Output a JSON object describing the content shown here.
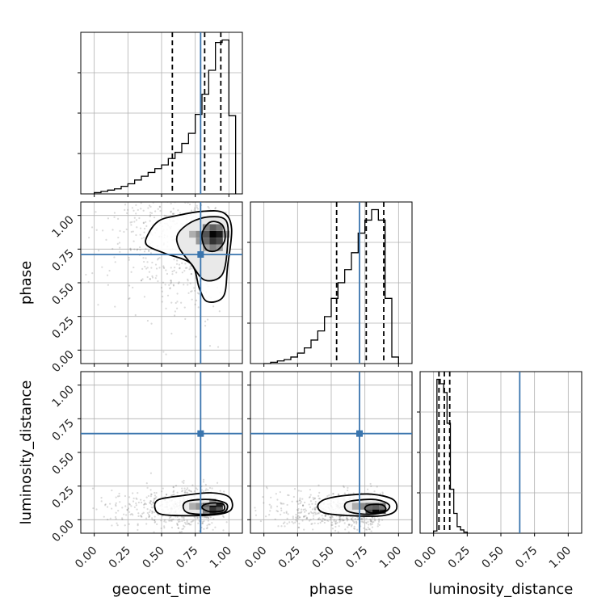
{
  "chart_data": {
    "type": "corner",
    "parameters": [
      "geocent_time",
      "phase",
      "luminosity_distance"
    ],
    "ticks": [
      0.0,
      0.25,
      0.5,
      0.75,
      1.0
    ],
    "tick_labels": [
      "0.00",
      "0.25",
      "0.50",
      "0.75",
      "1.00"
    ],
    "grid": true,
    "truth_color": "#3a75ae",
    "truths": {
      "geocent_time": 0.79,
      "phase": 0.71,
      "luminosity_distance": 0.64
    },
    "quantiles": {
      "geocent_time": [
        0.58,
        0.82,
        0.94
      ],
      "phase": [
        0.54,
        0.76,
        0.89
      ],
      "luminosity_distance": [
        0.04,
        0.08,
        0.12
      ]
    },
    "histograms": {
      "geocent_time": {
        "xlim": [
          -0.1,
          1.1
        ],
        "edges": [
          0.0,
          0.05,
          0.1,
          0.15,
          0.2,
          0.25,
          0.3,
          0.35,
          0.4,
          0.45,
          0.5,
          0.55,
          0.6,
          0.65,
          0.7,
          0.75,
          0.8,
          0.85,
          0.9,
          0.95,
          1.0,
          1.05
        ],
        "counts": [
          1,
          2,
          3,
          4,
          6,
          8,
          11,
          14,
          17,
          20,
          23,
          28,
          33,
          40,
          48,
          63,
          79,
          98,
          120,
          122,
          62
        ]
      },
      "phase": {
        "xlim": [
          -0.1,
          1.1
        ],
        "edges": [
          0.0,
          0.05,
          0.1,
          0.15,
          0.2,
          0.25,
          0.3,
          0.35,
          0.4,
          0.45,
          0.5,
          0.55,
          0.6,
          0.65,
          0.7,
          0.75,
          0.8,
          0.85,
          0.9,
          0.95,
          1.0
        ],
        "counts": [
          0,
          1,
          2,
          3,
          5,
          8,
          12,
          18,
          25,
          36,
          50,
          62,
          72,
          85,
          100,
          110,
          118,
          110,
          50,
          5
        ]
      },
      "luminosity_distance": {
        "xlim": [
          -0.1,
          1.1
        ],
        "edges": [
          0.0,
          0.025,
          0.05,
          0.075,
          0.1,
          0.125,
          0.15,
          0.175,
          0.2,
          0.225,
          0.25
        ],
        "counts": [
          2,
          140,
          136,
          128,
          100,
          40,
          18,
          6,
          3,
          1
        ]
      }
    },
    "contours": {
      "geocent_time__phase": {
        "xlim": [
          -0.1,
          1.1
        ],
        "ylim": [
          -0.1,
          1.1
        ],
        "mode": [
          0.89,
          0.86
        ],
        "levels": [
          [
            [
              0.4,
              0.86
            ],
            [
              0.48,
              0.96
            ],
            [
              0.62,
              1.0
            ],
            [
              0.8,
              1.03
            ],
            [
              0.96,
              1.02
            ],
            [
              1.02,
              0.9
            ],
            [
              0.99,
              0.62
            ],
            [
              0.96,
              0.4
            ],
            [
              0.84,
              0.36
            ],
            [
              0.78,
              0.46
            ],
            [
              0.72,
              0.64
            ],
            [
              0.52,
              0.72
            ],
            [
              0.39,
              0.78
            ]
          ],
          [
            [
              0.62,
              0.86
            ],
            [
              0.72,
              0.95
            ],
            [
              0.86,
              0.99
            ],
            [
              0.98,
              0.96
            ],
            [
              0.99,
              0.78
            ],
            [
              0.95,
              0.56
            ],
            [
              0.82,
              0.52
            ],
            [
              0.72,
              0.64
            ],
            [
              0.63,
              0.76
            ]
          ],
          [
            [
              0.8,
              0.86
            ],
            [
              0.86,
              0.95
            ],
            [
              0.95,
              0.93
            ],
            [
              0.97,
              0.82
            ],
            [
              0.91,
              0.74
            ],
            [
              0.83,
              0.75
            ]
          ]
        ],
        "density": [
          {
            "x": 0.88,
            "y": 0.86,
            "w": 1.0
          },
          {
            "x": 0.93,
            "y": 0.86,
            "w": 0.9
          },
          {
            "x": 0.88,
            "y": 0.81,
            "w": 0.8
          },
          {
            "x": 0.83,
            "y": 0.86,
            "w": 0.65
          },
          {
            "x": 0.93,
            "y": 0.81,
            "w": 0.7
          },
          {
            "x": 0.88,
            "y": 0.91,
            "w": 0.6
          },
          {
            "x": 0.78,
            "y": 0.86,
            "w": 0.4
          },
          {
            "x": 0.78,
            "y": 0.81,
            "w": 0.35
          },
          {
            "x": 0.83,
            "y": 0.81,
            "w": 0.55
          },
          {
            "x": 0.93,
            "y": 0.91,
            "w": 0.5
          },
          {
            "x": 0.83,
            "y": 0.91,
            "w": 0.45
          },
          {
            "x": 0.73,
            "y": 0.86,
            "w": 0.25
          },
          {
            "x": 0.88,
            "y": 0.76,
            "w": 0.45
          },
          {
            "x": 0.93,
            "y": 0.76,
            "w": 0.35
          },
          {
            "x": 0.98,
            "y": 0.86,
            "w": 0.3
          },
          {
            "x": 0.83,
            "y": 0.76,
            "w": 0.3
          }
        ]
      },
      "geocent_time__luminosity_distance": {
        "xlim": [
          -0.1,
          1.1
        ],
        "ylim": [
          -0.1,
          1.1
        ],
        "mode": [
          0.89,
          0.09
        ],
        "levels": [
          [
            [
              0.45,
              0.09
            ],
            [
              0.48,
              0.15
            ],
            [
              0.66,
              0.18
            ],
            [
              0.86,
              0.2
            ],
            [
              1.0,
              0.17
            ],
            [
              1.02,
              0.08
            ],
            [
              0.92,
              0.04
            ],
            [
              0.7,
              0.03
            ],
            [
              0.5,
              0.04
            ]
          ],
          [
            [
              0.66,
              0.1
            ],
            [
              0.7,
              0.14
            ],
            [
              0.86,
              0.15
            ],
            [
              0.98,
              0.12
            ],
            [
              0.97,
              0.06
            ],
            [
              0.86,
              0.04
            ],
            [
              0.7,
              0.05
            ]
          ],
          [
            [
              0.8,
              0.09
            ],
            [
              0.84,
              0.12
            ],
            [
              0.95,
              0.12
            ],
            [
              0.96,
              0.07
            ],
            [
              0.86,
              0.06
            ]
          ]
        ],
        "density": [
          {
            "x": 0.88,
            "y": 0.1,
            "w": 1.0
          },
          {
            "x": 0.93,
            "y": 0.1,
            "w": 0.9
          },
          {
            "x": 0.88,
            "y": 0.07,
            "w": 0.8
          },
          {
            "x": 0.83,
            "y": 0.1,
            "w": 0.6
          },
          {
            "x": 0.93,
            "y": 0.07,
            "w": 0.65
          },
          {
            "x": 0.78,
            "y": 0.1,
            "w": 0.35
          },
          {
            "x": 0.73,
            "y": 0.1,
            "w": 0.25
          },
          {
            "x": 0.88,
            "y": 0.13,
            "w": 0.4
          },
          {
            "x": 0.83,
            "y": 0.07,
            "w": 0.45
          }
        ]
      },
      "phase__luminosity_distance": {
        "xlim": [
          -0.1,
          1.1
        ],
        "ylim": [
          -0.1,
          1.1
        ],
        "mode": [
          0.83,
          0.07
        ],
        "levels": [
          [
            [
              0.4,
              0.1
            ],
            [
              0.45,
              0.15
            ],
            [
              0.6,
              0.18
            ],
            [
              0.8,
              0.19
            ],
            [
              0.96,
              0.15
            ],
            [
              0.98,
              0.07
            ],
            [
              0.88,
              0.03
            ],
            [
              0.65,
              0.03
            ],
            [
              0.45,
              0.05
            ]
          ],
          [
            [
              0.6,
              0.11
            ],
            [
              0.65,
              0.14
            ],
            [
              0.83,
              0.15
            ],
            [
              0.93,
              0.11
            ],
            [
              0.9,
              0.06
            ],
            [
              0.78,
              0.04
            ],
            [
              0.63,
              0.06
            ]
          ],
          [
            [
              0.75,
              0.08
            ],
            [
              0.78,
              0.11
            ],
            [
              0.88,
              0.11
            ],
            [
              0.9,
              0.07
            ],
            [
              0.8,
              0.05
            ]
          ]
        ],
        "density": [
          {
            "x": 0.83,
            "y": 0.07,
            "w": 1.0
          },
          {
            "x": 0.88,
            "y": 0.07,
            "w": 0.85
          },
          {
            "x": 0.78,
            "y": 0.07,
            "w": 0.7
          },
          {
            "x": 0.83,
            "y": 0.1,
            "w": 0.6
          },
          {
            "x": 0.73,
            "y": 0.1,
            "w": 0.4
          },
          {
            "x": 0.68,
            "y": 0.1,
            "w": 0.25
          },
          {
            "x": 0.88,
            "y": 0.1,
            "w": 0.5
          },
          {
            "x": 0.78,
            "y": 0.1,
            "w": 0.55
          }
        ]
      }
    }
  }
}
